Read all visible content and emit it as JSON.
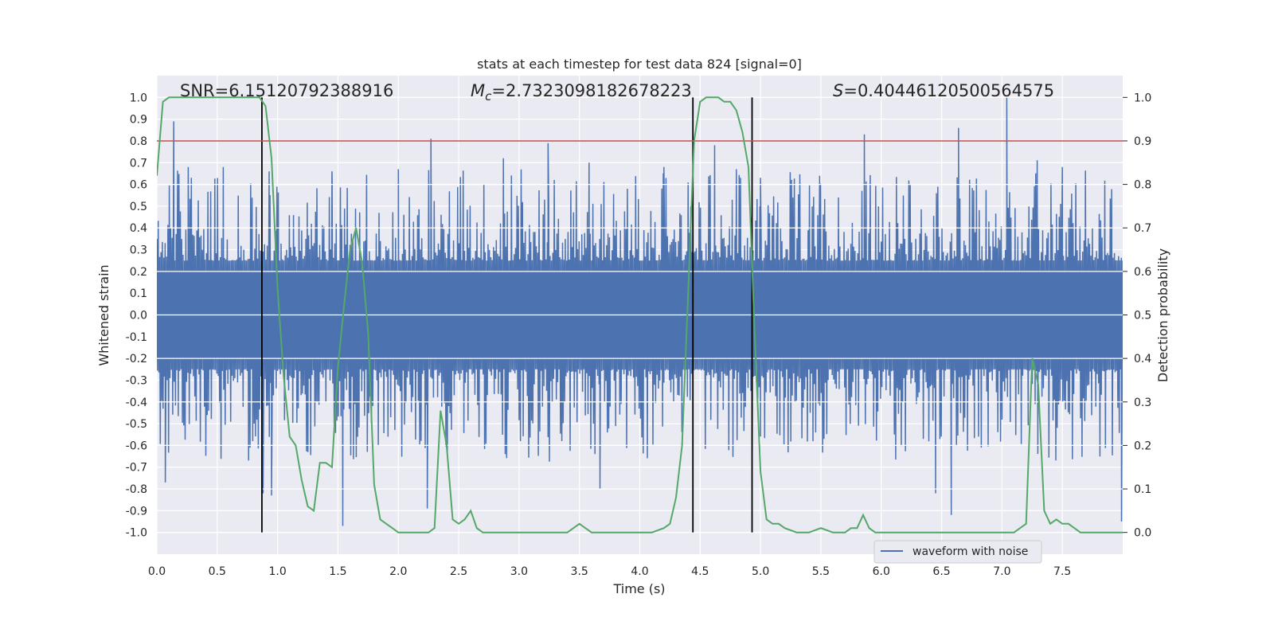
{
  "chart_data": {
    "type": "line",
    "title": "stats at each timestep for test data 824 [signal=0]",
    "xlabel": "Time (s)",
    "ylabel_left": "Whitened strain",
    "ylabel_right": "Detection probability",
    "xlim": [
      0.0,
      8.0
    ],
    "ylim_left": [
      -1.1,
      1.1
    ],
    "ylim_right": [
      -0.05,
      1.05
    ],
    "x_ticks": [
      "0.0",
      "0.5",
      "1.0",
      "1.5",
      "2.0",
      "2.5",
      "3.0",
      "3.5",
      "4.0",
      "4.5",
      "5.0",
      "5.5",
      "6.0",
      "6.5",
      "7.0",
      "7.5"
    ],
    "y_ticks_left": [
      "-1.0",
      "-0.9",
      "-0.8",
      "-0.7",
      "-0.6",
      "-0.5",
      "-0.4",
      "-0.3",
      "-0.2",
      "-0.1",
      "0.0",
      "0.1",
      "0.2",
      "0.3",
      "0.4",
      "0.5",
      "0.6",
      "0.7",
      "0.8",
      "0.9",
      "1.0"
    ],
    "y_ticks_right": [
      "0.0",
      "0.1",
      "0.2",
      "0.3",
      "0.4",
      "0.5",
      "0.6",
      "0.7",
      "0.8",
      "0.9",
      "1.0"
    ],
    "grid": true,
    "annotations": {
      "snr": {
        "label": "SNR=6.15120792388916"
      },
      "mc": {
        "prefix": "M",
        "sub": "c",
        "suffix": "=2.7323098182678223"
      },
      "s": {
        "prefix": "S",
        "suffix": "=0.40446120500564575"
      }
    },
    "threshold": {
      "value": 0.9,
      "axis": "right",
      "color": "#c44e52"
    },
    "vlines": [
      0.87,
      4.44,
      4.93
    ],
    "vline_color": "#000000",
    "legend": {
      "position": "lower-right",
      "entries": [
        {
          "name": "waveform with noise",
          "color": "#4c72b0"
        }
      ]
    },
    "series": [
      {
        "name": "waveform with noise",
        "color": "#4c72b0",
        "kind": "noise",
        "band": [
          -0.2,
          0.2
        ],
        "spikes_up": [
          [
            0.14,
            0.89
          ],
          [
            0.26,
            0.68
          ],
          [
            0.55,
            0.68
          ],
          [
            0.93,
            0.66
          ],
          [
            1.45,
            0.66
          ],
          [
            2.0,
            0.67
          ],
          [
            2.27,
            0.81
          ],
          [
            2.87,
            0.72
          ],
          [
            3.24,
            0.79
          ],
          [
            3.58,
            0.7
          ],
          [
            4.2,
            0.68
          ],
          [
            4.62,
            0.78
          ],
          [
            5.0,
            0.63
          ],
          [
            5.49,
            0.64
          ],
          [
            5.86,
            0.83
          ],
          [
            6.64,
            0.86
          ],
          [
            7.04,
            1.0
          ],
          [
            7.5,
            0.68
          ]
        ],
        "spikes_down": [
          [
            0.07,
            -0.77
          ],
          [
            0.88,
            -0.82
          ],
          [
            0.95,
            -0.83
          ],
          [
            1.54,
            -0.97
          ],
          [
            2.24,
            -0.89
          ],
          [
            3.67,
            -0.8
          ],
          [
            6.45,
            -0.82
          ],
          [
            6.58,
            -0.92
          ],
          [
            7.99,
            -0.95
          ]
        ]
      },
      {
        "name": "",
        "color": "#55a868",
        "axis": "right",
        "x": [
          0.0,
          0.05,
          0.1,
          0.2,
          0.3,
          0.4,
          0.5,
          0.6,
          0.7,
          0.75,
          0.8,
          0.85,
          0.9,
          0.95,
          1.0,
          1.05,
          1.1,
          1.15,
          1.2,
          1.25,
          1.3,
          1.35,
          1.4,
          1.45,
          1.5,
          1.55,
          1.6,
          1.65,
          1.7,
          1.75,
          1.8,
          1.85,
          1.9,
          1.95,
          2.0,
          2.05,
          2.1,
          2.15,
          2.2,
          2.25,
          2.3,
          2.35,
          2.4,
          2.45,
          2.5,
          2.55,
          2.6,
          2.65,
          2.7,
          2.75,
          2.8,
          2.9,
          3.0,
          3.1,
          3.2,
          3.3,
          3.4,
          3.5,
          3.6,
          3.7,
          3.8,
          3.9,
          4.0,
          4.1,
          4.2,
          4.25,
          4.3,
          4.35,
          4.4,
          4.45,
          4.5,
          4.55,
          4.6,
          4.65,
          4.7,
          4.75,
          4.8,
          4.85,
          4.9,
          4.95,
          5.0,
          5.05,
          5.1,
          5.15,
          5.2,
          5.3,
          5.4,
          5.5,
          5.6,
          5.7,
          5.75,
          5.8,
          5.85,
          5.9,
          5.95,
          6.0,
          6.1,
          6.2,
          6.3,
          6.4,
          6.5,
          6.6,
          6.7,
          6.8,
          6.9,
          7.0,
          7.1,
          7.15,
          7.2,
          7.25,
          7.3,
          7.35,
          7.4,
          7.45,
          7.5,
          7.55,
          7.6,
          7.65,
          7.7,
          7.8,
          7.9,
          8.0
        ],
        "y": [
          0.82,
          0.99,
          1.0,
          1.0,
          1.0,
          1.0,
          1.0,
          1.0,
          1.0,
          1.0,
          1.0,
          1.0,
          0.98,
          0.86,
          0.56,
          0.36,
          0.22,
          0.2,
          0.12,
          0.06,
          0.05,
          0.16,
          0.16,
          0.15,
          0.38,
          0.52,
          0.65,
          0.7,
          0.62,
          0.46,
          0.11,
          0.03,
          0.02,
          0.01,
          0.0,
          0.0,
          0.0,
          0.0,
          0.0,
          0.0,
          0.01,
          0.28,
          0.2,
          0.03,
          0.02,
          0.03,
          0.05,
          0.01,
          0.0,
          0.0,
          0.0,
          0.0,
          0.0,
          0.0,
          0.0,
          0.0,
          0.0,
          0.02,
          0.0,
          0.0,
          0.0,
          0.0,
          0.0,
          0.0,
          0.01,
          0.02,
          0.08,
          0.2,
          0.55,
          0.9,
          0.99,
          1.0,
          1.0,
          1.0,
          0.99,
          0.99,
          0.97,
          0.92,
          0.84,
          0.47,
          0.14,
          0.03,
          0.02,
          0.02,
          0.01,
          0.0,
          0.0,
          0.01,
          0.0,
          0.0,
          0.01,
          0.01,
          0.04,
          0.01,
          0.0,
          0.0,
          0.0,
          0.0,
          0.0,
          0.0,
          0.0,
          0.0,
          0.0,
          0.0,
          0.0,
          0.0,
          0.0,
          0.01,
          0.02,
          0.4,
          0.34,
          0.05,
          0.02,
          0.03,
          0.02,
          0.02,
          0.01,
          0.0,
          0.0,
          0.0,
          0.0,
          0.0
        ]
      }
    ]
  }
}
